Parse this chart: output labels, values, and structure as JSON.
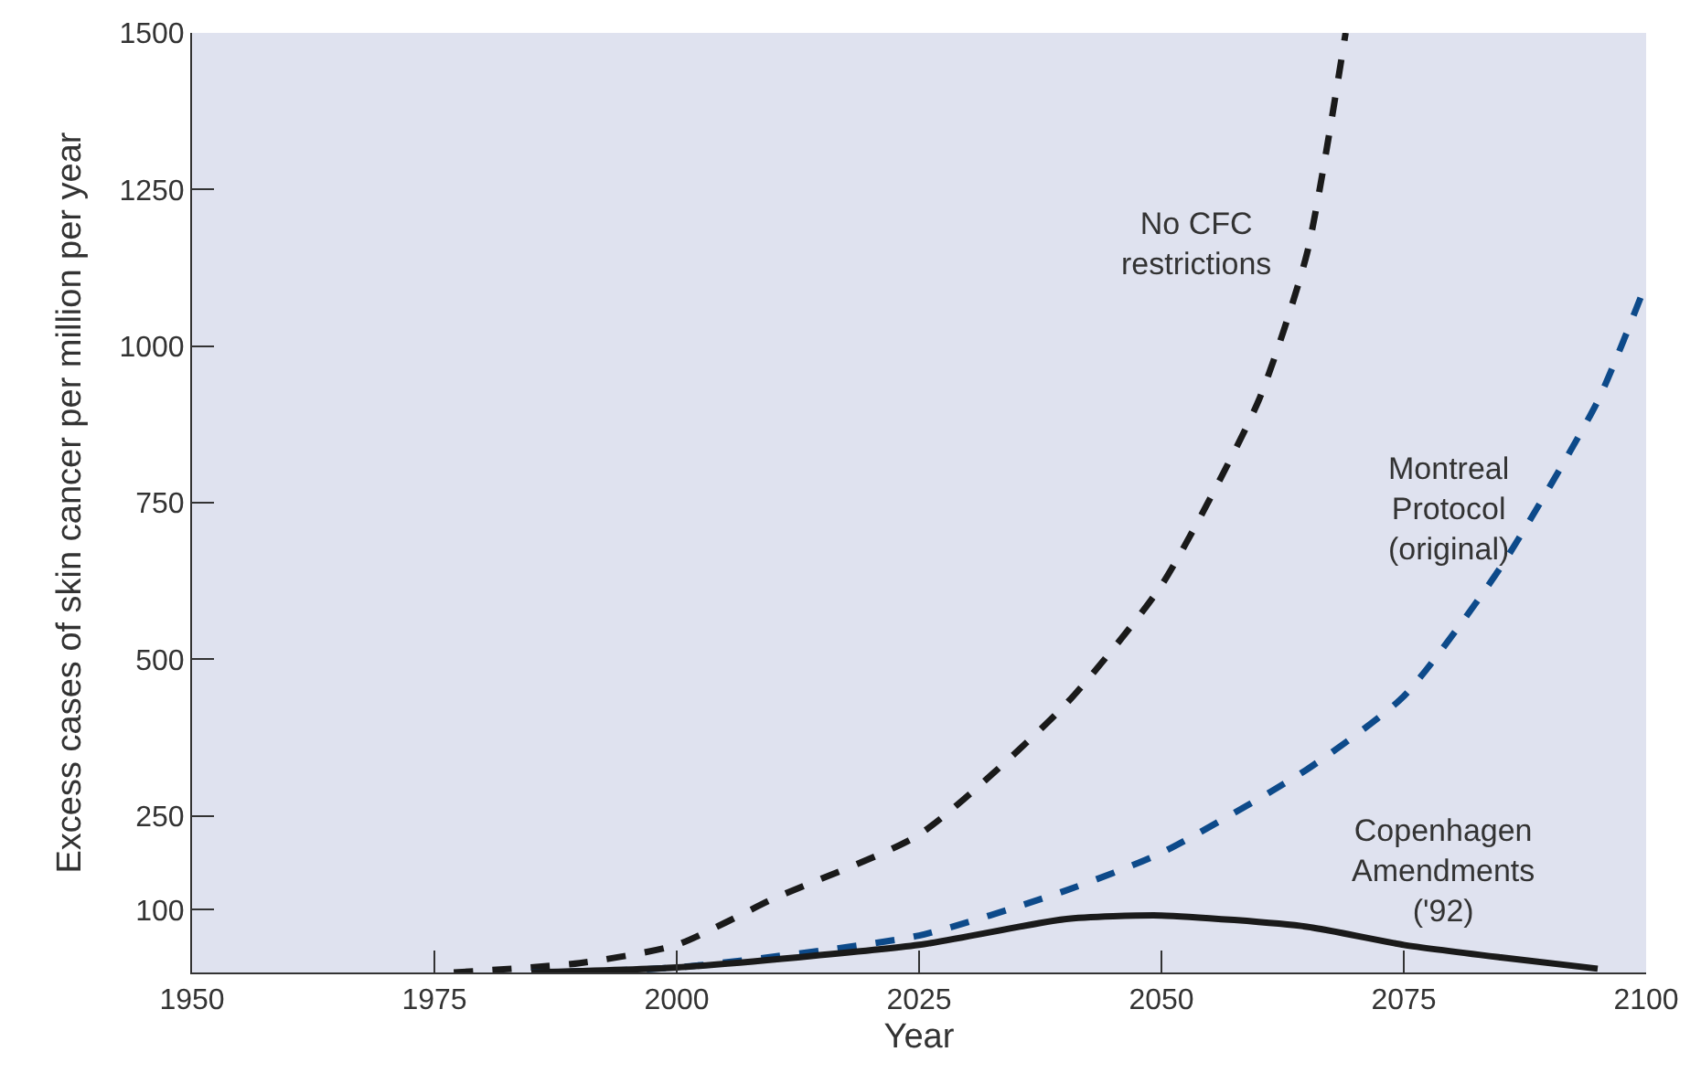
{
  "chart_data": {
    "type": "line",
    "xlabel": "Year",
    "ylabel": "Excess cases of skin cancer per million per year",
    "xlim": [
      1950,
      2100
    ],
    "xticks": [
      1950,
      1975,
      2000,
      2025,
      2050,
      2075,
      2100
    ],
    "ylim": [
      0,
      1500
    ],
    "yticks": [
      100,
      250,
      500,
      750,
      1000,
      1250,
      1500
    ],
    "grid": false,
    "legend": false,
    "series": [
      {
        "name": "No CFC\nrestrictions",
        "color": "#1a1a1a",
        "line_style": "dashed",
        "x": [
          1977,
          1990,
          2000,
          2010,
          2025,
          2040,
          2050,
          2060,
          2065,
          2069
        ],
        "values": [
          0,
          15,
          44,
          118,
          220,
          426,
          618,
          912,
          1147,
          1500
        ]
      },
      {
        "name": "Montreal\nProtocol\n(original)",
        "color": "#0d4a8a",
        "line_style": "dashed",
        "x": [
          1985,
          2000,
          2025,
          2040,
          2050,
          2065,
          2075,
          2085,
          2095,
          2100
        ],
        "values": [
          0,
          8,
          59,
          130,
          191,
          324,
          441,
          647,
          912,
          1100
        ]
      },
      {
        "name": "Copenhagen\nAmendments\n('92)",
        "color": "#1a1a1a",
        "line_style": "solid",
        "x": [
          1985,
          2000,
          2025,
          2040,
          2050,
          2065,
          2075,
          2085,
          2095
        ],
        "values": [
          0,
          8,
          44,
          85,
          91,
          73,
          44,
          24,
          6
        ]
      }
    ]
  }
}
